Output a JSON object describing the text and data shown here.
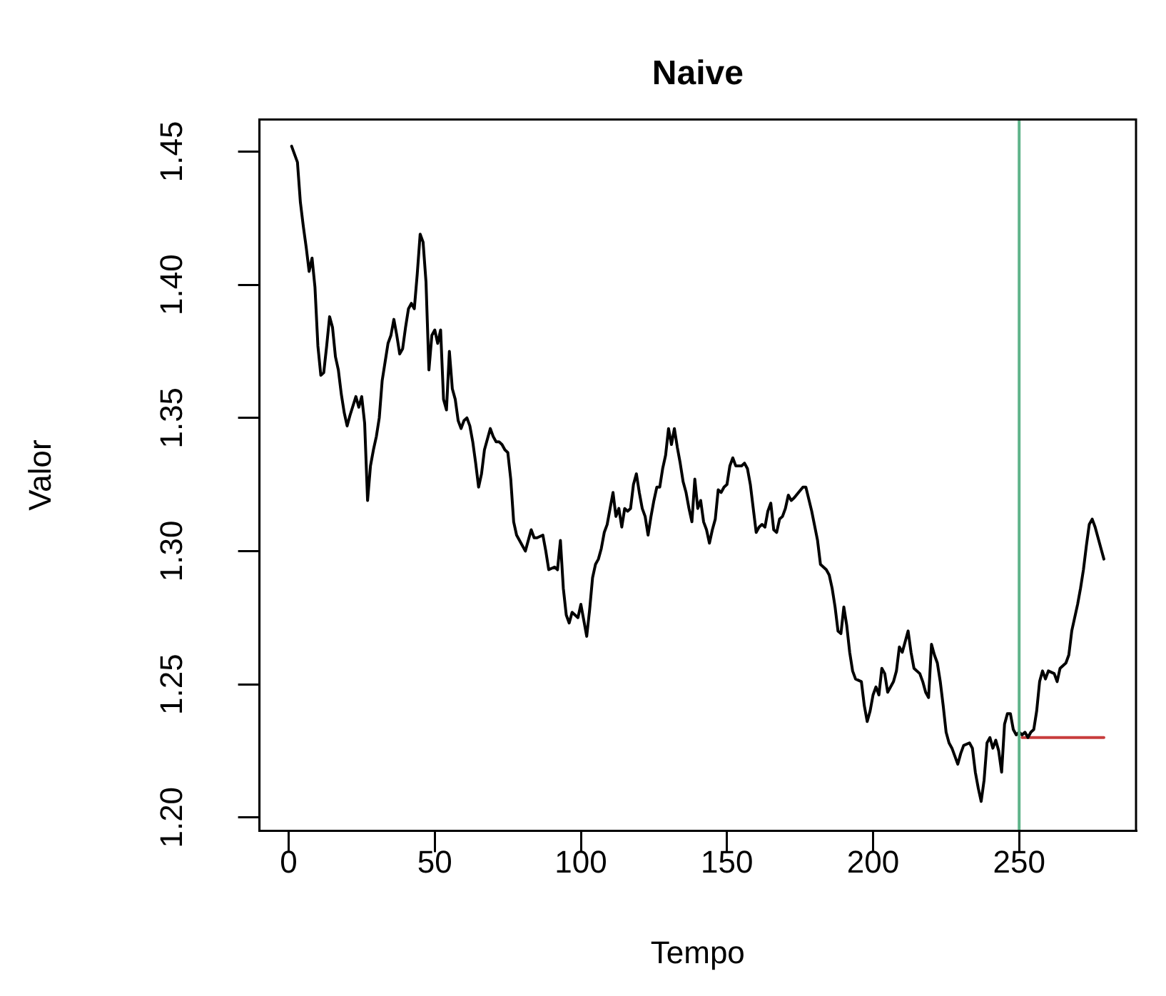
{
  "chart_data": {
    "type": "line",
    "title": "Naive",
    "xlabel": "Tempo",
    "ylabel": "Valor",
    "xlim": [
      -10,
      290
    ],
    "xticks": [
      0,
      50,
      100,
      150,
      200,
      250
    ],
    "ylim": [
      1.195,
      1.462
    ],
    "yticks": [
      {
        "value": 1.2,
        "label": "1.20"
      },
      1.25,
      {
        "value": 1.3,
        "label": "1.30"
      },
      1.35,
      {
        "value": 1.4,
        "label": "1.40"
      },
      1.45
    ],
    "marker": "none",
    "line_style": "solid",
    "series": [
      {
        "color": "#000000",
        "x": [
          1,
          3,
          4,
          5,
          6,
          7,
          8,
          9,
          10,
          11,
          12,
          13,
          14,
          15,
          16,
          17,
          18,
          19,
          20,
          21,
          23,
          24,
          25,
          26,
          27,
          28,
          29,
          30,
          31,
          32,
          33,
          34,
          35,
          36,
          37,
          38,
          39,
          40,
          41,
          42,
          43,
          44,
          45,
          46,
          47,
          48,
          49,
          50,
          51,
          52,
          53,
          54,
          55,
          56,
          57,
          58,
          59,
          60,
          61,
          62,
          63,
          64,
          65,
          66,
          67,
          69,
          70,
          71,
          72,
          73,
          74,
          75,
          76,
          77,
          78,
          81,
          83,
          84,
          85,
          87,
          88,
          89,
          91,
          92,
          93,
          94,
          95,
          96,
          97,
          98,
          99,
          100,
          101,
          102,
          103,
          104,
          105,
          106,
          107,
          108,
          109,
          110,
          111,
          112,
          113,
          114,
          115,
          116,
          117,
          118,
          119,
          120,
          121,
          122,
          123,
          124,
          125,
          126,
          127,
          128,
          129,
          130,
          131,
          132,
          133,
          134,
          135,
          136,
          137,
          138,
          139,
          140,
          141,
          142,
          143,
          144,
          145,
          146,
          147,
          148,
          149,
          150,
          151,
          152,
          153,
          154,
          155,
          156,
          157,
          158,
          159,
          160,
          161,
          162,
          163,
          164,
          165,
          166,
          167,
          168,
          169,
          170,
          171,
          172,
          173,
          176,
          177,
          179,
          181,
          182,
          184,
          185,
          186,
          187,
          188,
          189,
          190,
          191,
          192,
          193,
          194,
          196,
          197,
          198,
          199,
          200,
          201,
          202,
          203,
          204,
          205,
          207,
          208,
          209,
          210,
          211,
          212,
          213,
          214,
          216,
          217,
          218,
          219,
          220,
          221,
          222,
          223,
          224,
          225,
          226,
          227,
          228,
          229,
          230,
          231,
          233,
          234,
          235,
          236,
          237,
          238,
          239,
          240,
          241,
          242,
          243,
          244,
          245,
          246,
          247,
          248,
          249,
          250,
          251,
          252,
          253,
          254,
          255,
          256,
          257,
          258,
          259,
          260,
          262,
          263,
          264,
          265,
          266,
          267,
          268,
          270,
          271,
          272,
          273,
          274,
          275,
          276,
          277,
          278,
          279
        ],
        "values": [
          1.452,
          1.446,
          1.431,
          1.422,
          1.414,
          1.405,
          1.41,
          1.399,
          1.377,
          1.366,
          1.367,
          1.377,
          1.388,
          1.384,
          1.373,
          1.368,
          1.359,
          1.352,
          1.347,
          1.351,
          1.358,
          1.354,
          1.358,
          1.348,
          1.319,
          1.332,
          1.338,
          1.343,
          1.35,
          1.364,
          1.371,
          1.378,
          1.381,
          1.387,
          1.381,
          1.374,
          1.376,
          1.384,
          1.391,
          1.393,
          1.391,
          1.404,
          1.419,
          1.416,
          1.401,
          1.368,
          1.381,
          1.383,
          1.378,
          1.383,
          1.357,
          1.353,
          1.375,
          1.361,
          1.357,
          1.349,
          1.346,
          1.349,
          1.35,
          1.347,
          1.341,
          1.333,
          1.324,
          1.329,
          1.338,
          1.346,
          1.343,
          1.341,
          1.341,
          1.34,
          1.338,
          1.337,
          1.327,
          1.311,
          1.306,
          1.3,
          1.308,
          1.305,
          1.305,
          1.306,
          1.3,
          1.293,
          1.294,
          1.293,
          1.304,
          1.286,
          1.276,
          1.273,
          1.277,
          1.276,
          1.275,
          1.28,
          1.274,
          1.268,
          1.278,
          1.29,
          1.295,
          1.297,
          1.301,
          1.307,
          1.31,
          1.316,
          1.322,
          1.313,
          1.316,
          1.309,
          1.316,
          1.315,
          1.316,
          1.325,
          1.329,
          1.322,
          1.316,
          1.313,
          1.306,
          1.313,
          1.319,
          1.324,
          1.324,
          1.331,
          1.336,
          1.346,
          1.34,
          1.346,
          1.339,
          1.333,
          1.326,
          1.322,
          1.316,
          1.311,
          1.327,
          1.316,
          1.319,
          1.311,
          1.308,
          1.303,
          1.308,
          1.312,
          1.323,
          1.322,
          1.324,
          1.325,
          1.332,
          1.335,
          1.332,
          1.332,
          1.332,
          1.333,
          1.331,
          1.325,
          1.316,
          1.307,
          1.309,
          1.31,
          1.309,
          1.315,
          1.318,
          1.308,
          1.307,
          1.312,
          1.313,
          1.316,
          1.321,
          1.319,
          1.32,
          1.324,
          1.324,
          1.315,
          1.304,
          1.295,
          1.293,
          1.291,
          1.286,
          1.279,
          1.27,
          1.269,
          1.279,
          1.272,
          1.262,
          1.255,
          1.252,
          1.251,
          1.242,
          1.236,
          1.24,
          1.246,
          1.249,
          1.246,
          1.256,
          1.254,
          1.247,
          1.251,
          1.255,
          1.264,
          1.262,
          1.266,
          1.27,
          1.262,
          1.256,
          1.254,
          1.251,
          1.247,
          1.245,
          1.265,
          1.261,
          1.258,
          1.251,
          1.242,
          1.232,
          1.228,
          1.226,
          1.223,
          1.22,
          1.224,
          1.227,
          1.228,
          1.226,
          1.217,
          1.211,
          1.206,
          1.214,
          1.228,
          1.23,
          1.226,
          1.229,
          1.225,
          1.217,
          1.235,
          1.239,
          1.239,
          1.233,
          1.231,
          1.232,
          1.231,
          1.232,
          1.23,
          1.232,
          1.233,
          1.24,
          1.251,
          1.255,
          1.252,
          1.255,
          1.254,
          1.251,
          1.256,
          1.257,
          1.258,
          1.261,
          1.27,
          1.28,
          1.286,
          1.293,
          1.302,
          1.31,
          1.312,
          1.309,
          1.305,
          1.301,
          1.297
        ]
      },
      {
        "color": "#c83c3c",
        "x": [
          251,
          279
        ],
        "values": [
          1.23,
          1.23
        ]
      }
    ],
    "ref_lines": [
      {
        "axis": "x",
        "value": 250,
        "color": "#5fb48a"
      }
    ]
  }
}
